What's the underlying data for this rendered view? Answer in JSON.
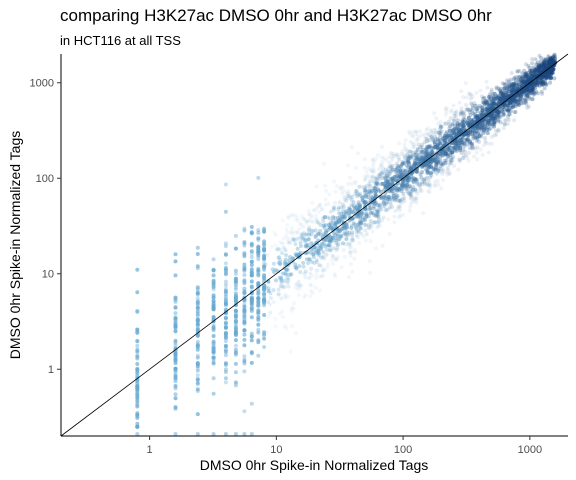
{
  "chart_data": {
    "type": "scatter",
    "title": "comparing H3K27ac DMSO 0hr and H3K27ac DMSO 0hr",
    "subtitle": "in HCT116 at all TSS",
    "xlabel": "DMSO 0hr Spike-in Normalized Tags",
    "ylabel": "DMSO 0hr Spike-in Normalized Tags",
    "x_scale": "log10",
    "y_scale": "log10",
    "xlim": [
      0.2,
      2000
    ],
    "ylim": [
      0.2,
      2000
    ],
    "x_ticks": [
      1,
      10,
      100,
      1000
    ],
    "y_ticks": [
      1,
      10,
      100,
      1000
    ],
    "x_tick_labels": [
      "1",
      "10",
      "100",
      "1000"
    ],
    "y_tick_labels": [
      "1",
      "10",
      "100",
      "1000"
    ],
    "reference_line": "y = x",
    "grid": false,
    "legend": "none",
    "point_color_low": "#6baed6",
    "point_color_high": "#08306b",
    "discrete_x_values": [
      0.8,
      1.6,
      2.4,
      3.2,
      4.0,
      4.8,
      5.6,
      6.4,
      7.2,
      8.0
    ],
    "series": [
      {
        "x": [
          0.8,
          0.8,
          0.8,
          0.8,
          0.8,
          1.6,
          1.6,
          1.6,
          1.6,
          1.6,
          1.6,
          2.4,
          2.4,
          2.4,
          2.4,
          2.4,
          3.2,
          3.2,
          3.2,
          3.2,
          4.0,
          4.0,
          4.0,
          4.0,
          4.8,
          4.8,
          4.8,
          5.6,
          5.6,
          6.4,
          7.2,
          8.0,
          12,
          15,
          20,
          25,
          30,
          40,
          50,
          60,
          80,
          100,
          120,
          150,
          200,
          250,
          300,
          400,
          500,
          600,
          700,
          800,
          1000,
          1200
        ],
        "y": [
          0.8,
          2.4,
          4.0,
          6.4,
          11,
          0.8,
          1.6,
          3.2,
          5.6,
          9.6,
          16,
          1.6,
          2.4,
          4.0,
          7.2,
          12,
          1.6,
          3.2,
          5.6,
          9.6,
          2.4,
          4.0,
          6.4,
          11,
          3.2,
          5.6,
          8.8,
          4.0,
          6.4,
          7.2,
          8.0,
          12,
          11,
          16,
          19,
          24,
          30,
          38,
          48,
          62,
          78,
          98,
          120,
          150,
          190,
          250,
          300,
          390,
          480,
          600,
          700,
          800,
          990,
          1200
        ]
      }
    ]
  }
}
